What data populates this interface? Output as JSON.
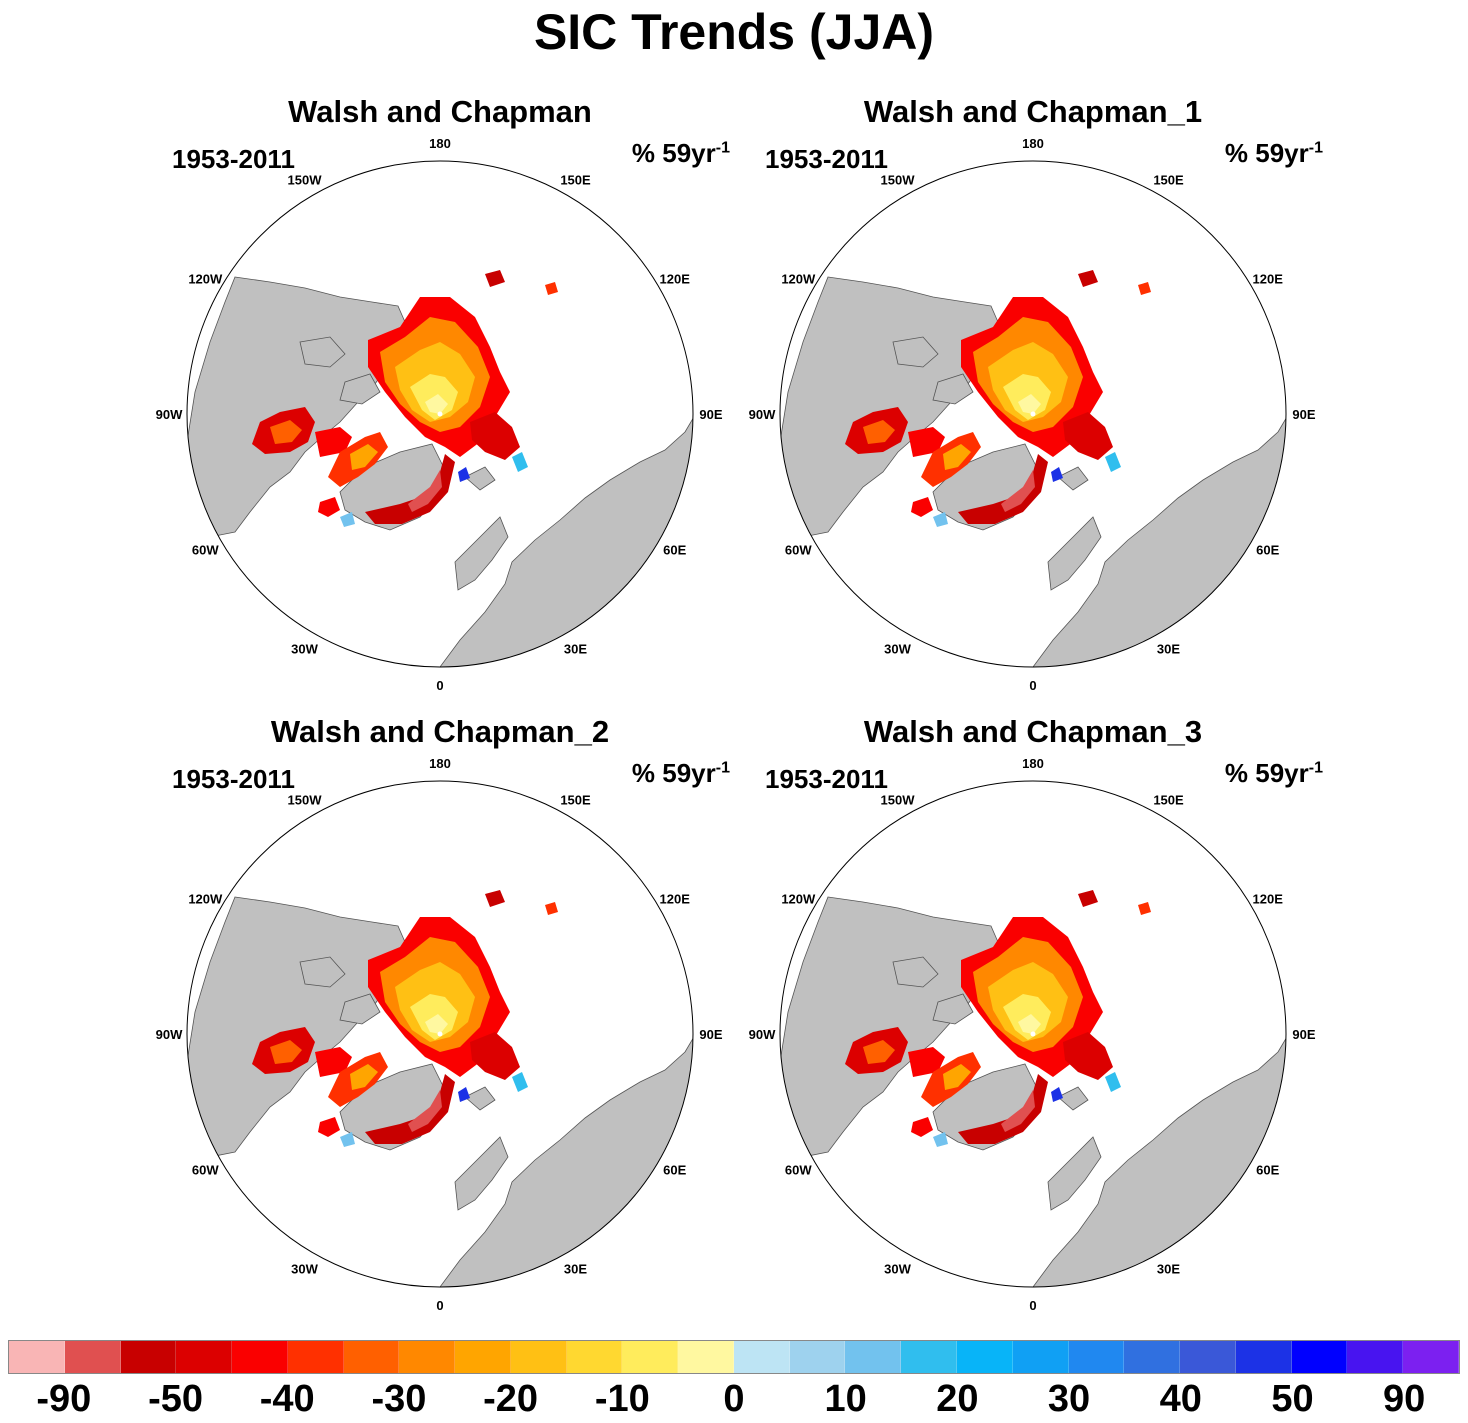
{
  "title": "SIC Trends (JJA)",
  "colors": {
    "land": "#c0c0c0",
    "ocean": "#ffffff",
    "coast": "#555555"
  },
  "panels": [
    {
      "title": "Walsh and Chapman",
      "period": "1953-2011",
      "unit_base": "% 59yr",
      "unit_exp": "-1"
    },
    {
      "title": "Walsh and Chapman_1",
      "period": "1953-2011",
      "unit_base": "% 59yr",
      "unit_exp": "-1"
    },
    {
      "title": "Walsh and Chapman_2",
      "period": "1953-2011",
      "unit_base": "% 59yr",
      "unit_exp": "-1"
    },
    {
      "title": "Walsh and Chapman_3",
      "period": "1953-2011",
      "unit_base": "% 59yr",
      "unit_exp": "-1"
    }
  ],
  "lon_labels": [
    {
      "lon": 180,
      "text": "180"
    },
    {
      "lon": 150,
      "text": "150E"
    },
    {
      "lon": 120,
      "text": "120E"
    },
    {
      "lon": 90,
      "text": "90E"
    },
    {
      "lon": 60,
      "text": "60E"
    },
    {
      "lon": 30,
      "text": "30E"
    },
    {
      "lon": 0,
      "text": "0"
    },
    {
      "lon": -30,
      "text": "30W"
    },
    {
      "lon": -60,
      "text": "60W"
    },
    {
      "lon": -90,
      "text": "90W"
    },
    {
      "lon": -120,
      "text": "120W"
    },
    {
      "lon": -150,
      "text": "150W"
    }
  ],
  "colorbar": {
    "colors": [
      "#f9b5b5",
      "#e05050",
      "#c80000",
      "#dc0000",
      "#fa0000",
      "#ff3000",
      "#ff6000",
      "#ff8800",
      "#ffa500",
      "#ffc014",
      "#ffd830",
      "#ffec5c",
      "#fff8a0",
      "#bde4f4",
      "#9ed2ee",
      "#72c2ee",
      "#30beee",
      "#08b4f8",
      "#10a0f4",
      "#2088f0",
      "#3070e0",
      "#3a58d8",
      "#1c32e6",
      "#0000ff",
      "#4814f0",
      "#7c20f0"
    ],
    "labels": [
      {
        "boundary": 1,
        "text": "-90"
      },
      {
        "boundary": 3,
        "text": "-50"
      },
      {
        "boundary": 5,
        "text": "-40"
      },
      {
        "boundary": 7,
        "text": "-30"
      },
      {
        "boundary": 9,
        "text": "-20"
      },
      {
        "boundary": 11,
        "text": "-10"
      },
      {
        "boundary": 13,
        "text": "0"
      },
      {
        "boundary": 15,
        "text": "10"
      },
      {
        "boundary": 17,
        "text": "20"
      },
      {
        "boundary": 19,
        "text": "30"
      },
      {
        "boundary": 21,
        "text": "40"
      },
      {
        "boundary": 23,
        "text": "50"
      },
      {
        "boundary": 25,
        "text": "90"
      }
    ]
  }
}
